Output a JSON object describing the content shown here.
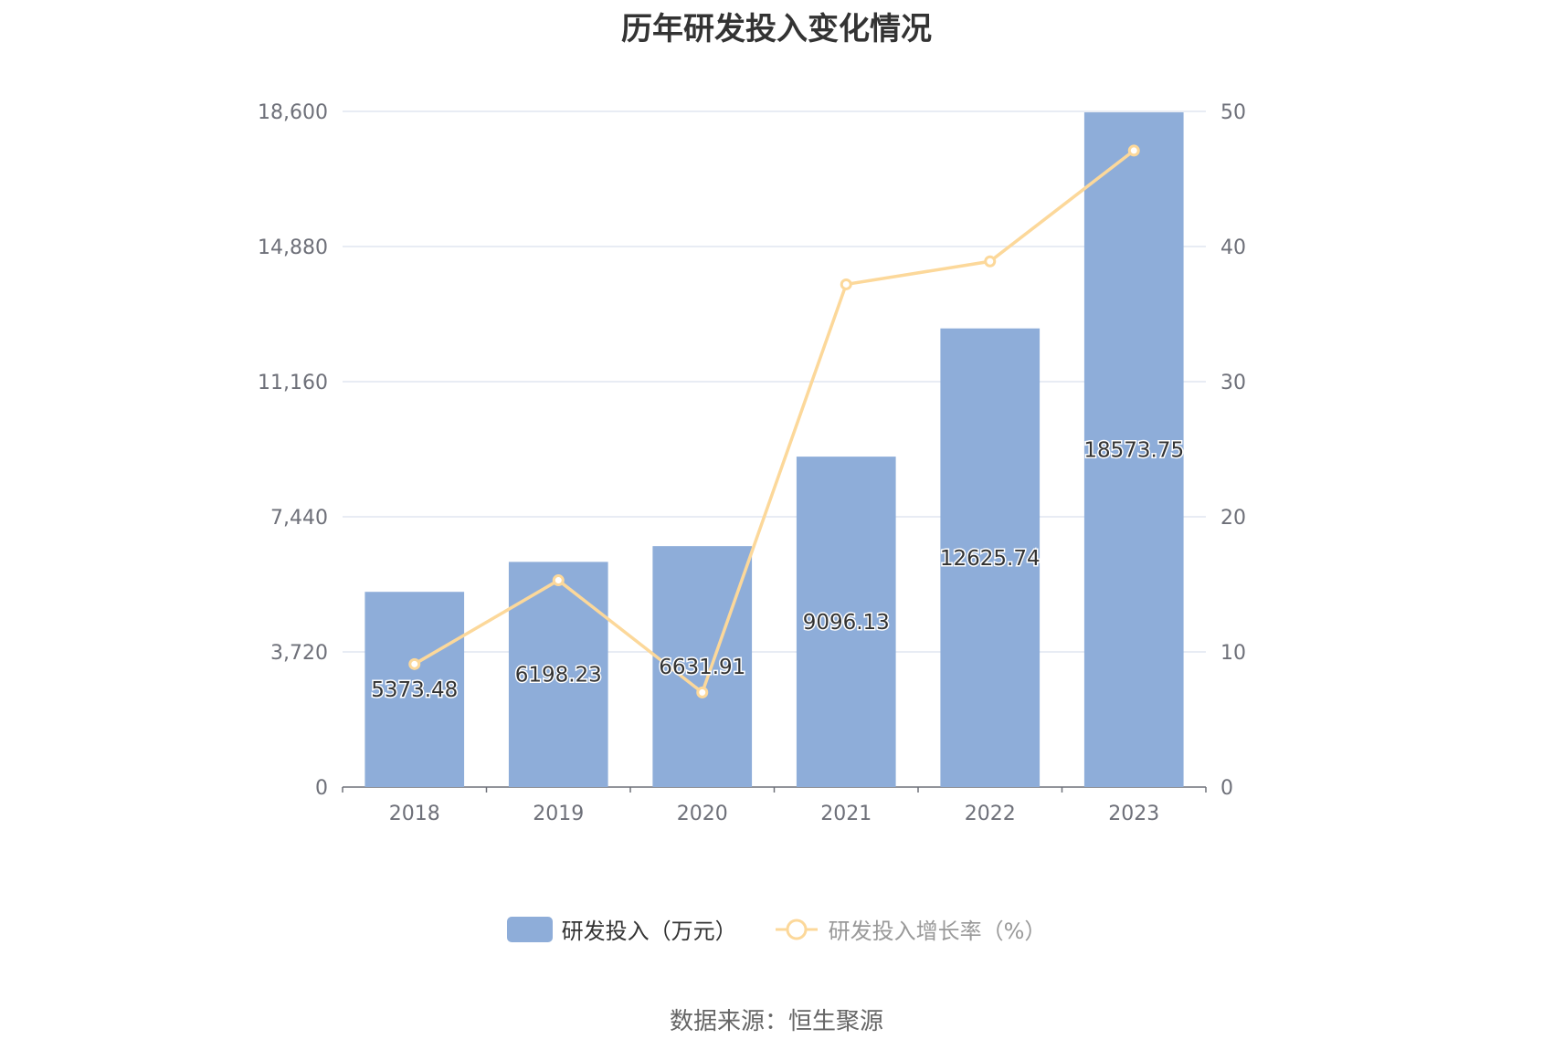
{
  "chart_data": {
    "type": "bar",
    "title": "历年研发投入变化情况",
    "categories": [
      "2018",
      "2019",
      "2020",
      "2021",
      "2022",
      "2023"
    ],
    "series": [
      {
        "name": "研发投入（万元）",
        "type": "bar",
        "axis": "left",
        "values": [
          5373.48,
          6198.23,
          6631.91,
          9096.13,
          12625.74,
          18573.75
        ],
        "labels": [
          "5373.48",
          "6198.23",
          "6631.91",
          "9096.13",
          "12625.74",
          "18573.75"
        ],
        "color": "#8eadd9"
      },
      {
        "name": "研发投入增长率（%）",
        "type": "line",
        "axis": "right",
        "values": [
          9.1,
          15.3,
          7.0,
          37.2,
          38.9,
          47.1
        ],
        "color": "#fcd89a"
      }
    ],
    "y_left": {
      "ylim": [
        0,
        18600
      ],
      "ticks": [
        0,
        3720,
        7440,
        11160,
        14880,
        18600
      ],
      "tick_labels": [
        "0",
        "3,720",
        "7,440",
        "11,160",
        "14,880",
        "18,600"
      ]
    },
    "y_right": {
      "ylim": [
        0,
        50
      ],
      "ticks": [
        0,
        10,
        20,
        30,
        40,
        50
      ],
      "tick_labels": [
        "0",
        "10",
        "20",
        "30",
        "40",
        "50"
      ]
    },
    "grid": true,
    "legend_placement": "bottom"
  },
  "footer": {
    "source": "数据来源：恒生聚源"
  }
}
